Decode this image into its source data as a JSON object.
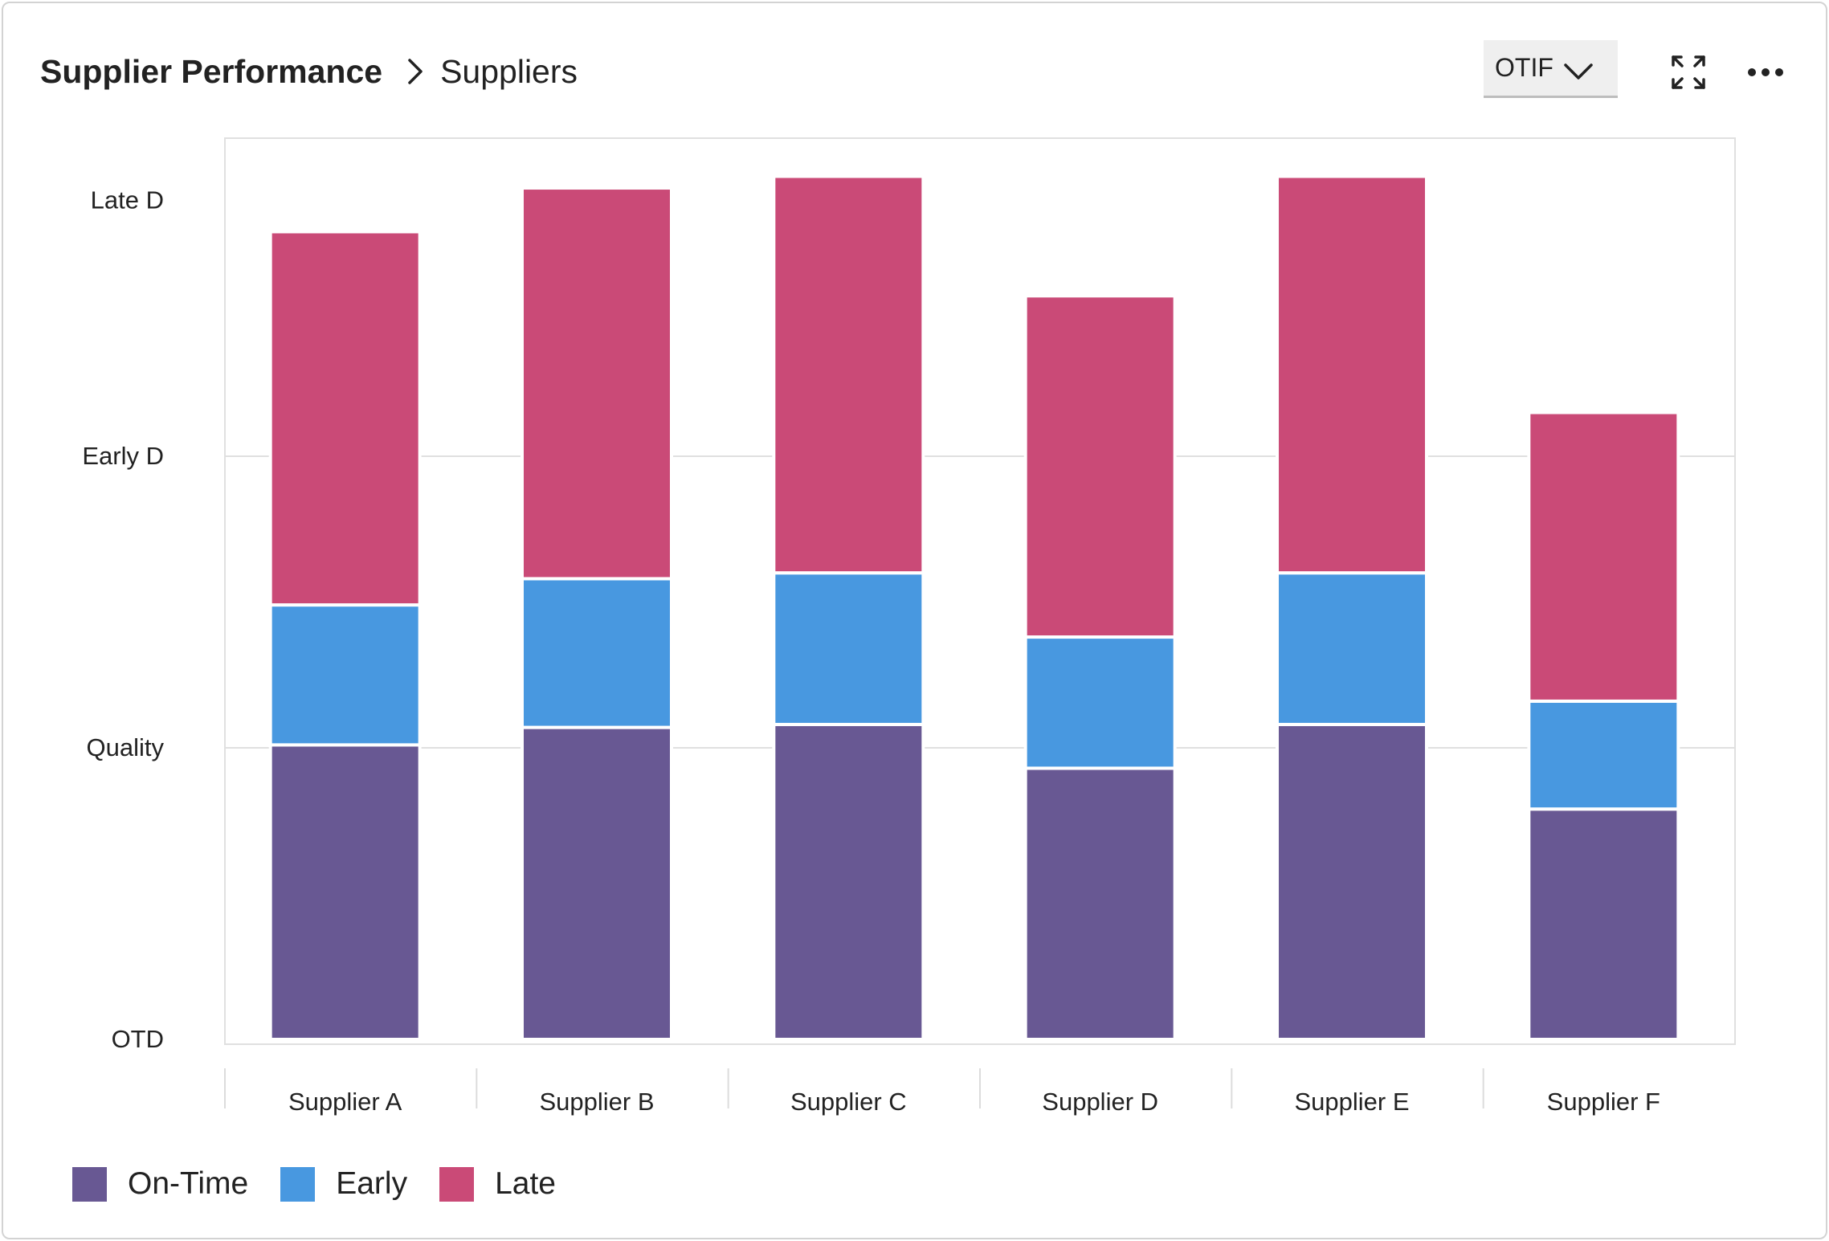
{
  "breadcrumb": {
    "root": "Supplier Performance",
    "current": "Suppliers"
  },
  "controls": {
    "metric_select_value": "OTIF",
    "expand_icon": "expand-icon",
    "more_icon": "more-horizontal-icon",
    "chevron_icon": "chevron-down-icon",
    "breadcrumb_separator_icon": "chevron-right-icon"
  },
  "chart_data": {
    "type": "bar",
    "stacked": true,
    "categories": [
      "Supplier A",
      "Supplier B",
      "Supplier C",
      "Supplier D",
      "Supplier E",
      "Supplier F"
    ],
    "series": [
      {
        "name": "On-Time",
        "color": "#685893",
        "values": [
          1.01,
          1.07,
          1.08,
          0.93,
          1.08,
          0.79
        ]
      },
      {
        "name": "Early",
        "color": "#4898e0",
        "values": [
          0.48,
          0.51,
          0.52,
          0.45,
          0.52,
          0.37
        ]
      },
      {
        "name": "Late",
        "color": "#ca4a77",
        "values": [
          1.28,
          1.34,
          1.36,
          1.17,
          1.36,
          0.99
        ]
      }
    ],
    "y_tick_labels": [
      "OTD",
      "Quality",
      "Early D",
      "Late D"
    ],
    "ylim": [
      0,
      3.1
    ],
    "grid": true,
    "legend_position": "bottom-left"
  }
}
